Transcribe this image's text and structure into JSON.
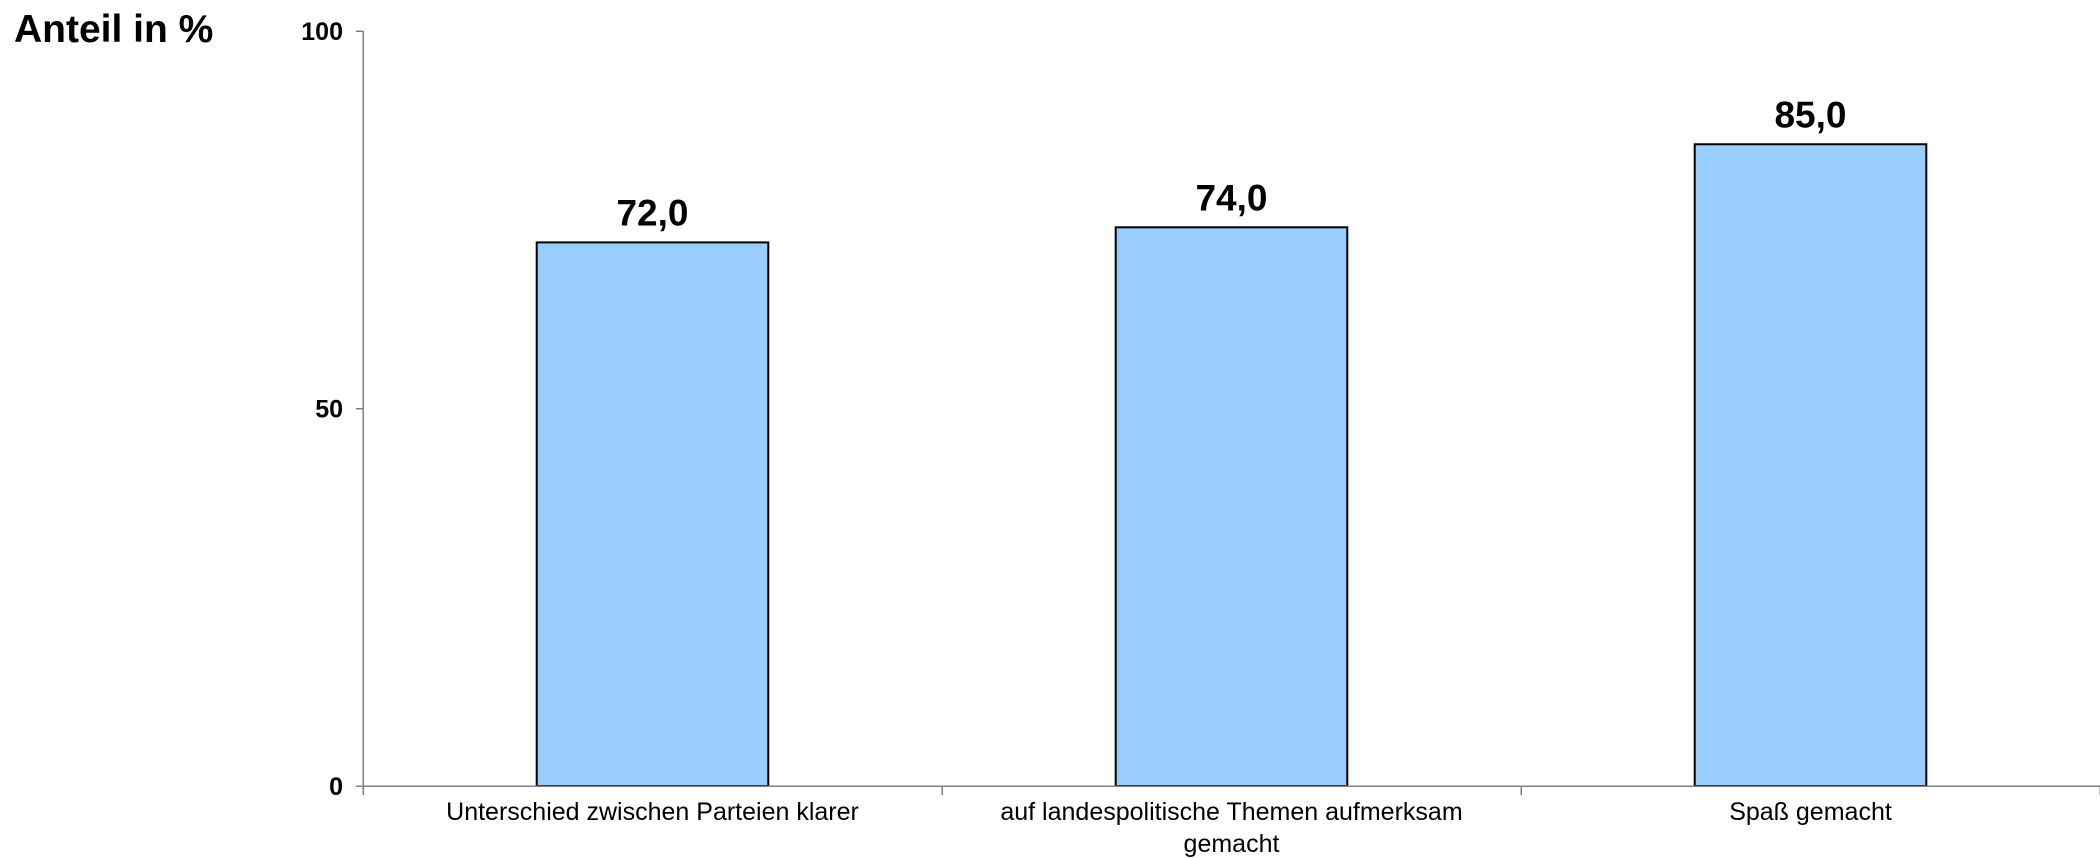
{
  "chart_data": {
    "type": "bar",
    "title": "",
    "xlabel": "",
    "ylabel": "Anteil in %",
    "ylim": [
      0,
      100
    ],
    "yticks": [
      0,
      50,
      100
    ],
    "categories": [
      [
        "Unterschied zwischen Parteien klarer"
      ],
      [
        "auf landespolitische Themen aufmerksam",
        "gemacht"
      ],
      [
        "Spaß gemacht"
      ]
    ],
    "values": [
      72.0,
      74.0,
      85.0
    ],
    "value_labels": [
      "72,0",
      "74,0",
      "85,0"
    ],
    "bar_color": "#99ccff",
    "bar_border_color": "#000000",
    "grid": false,
    "legend": "none"
  }
}
